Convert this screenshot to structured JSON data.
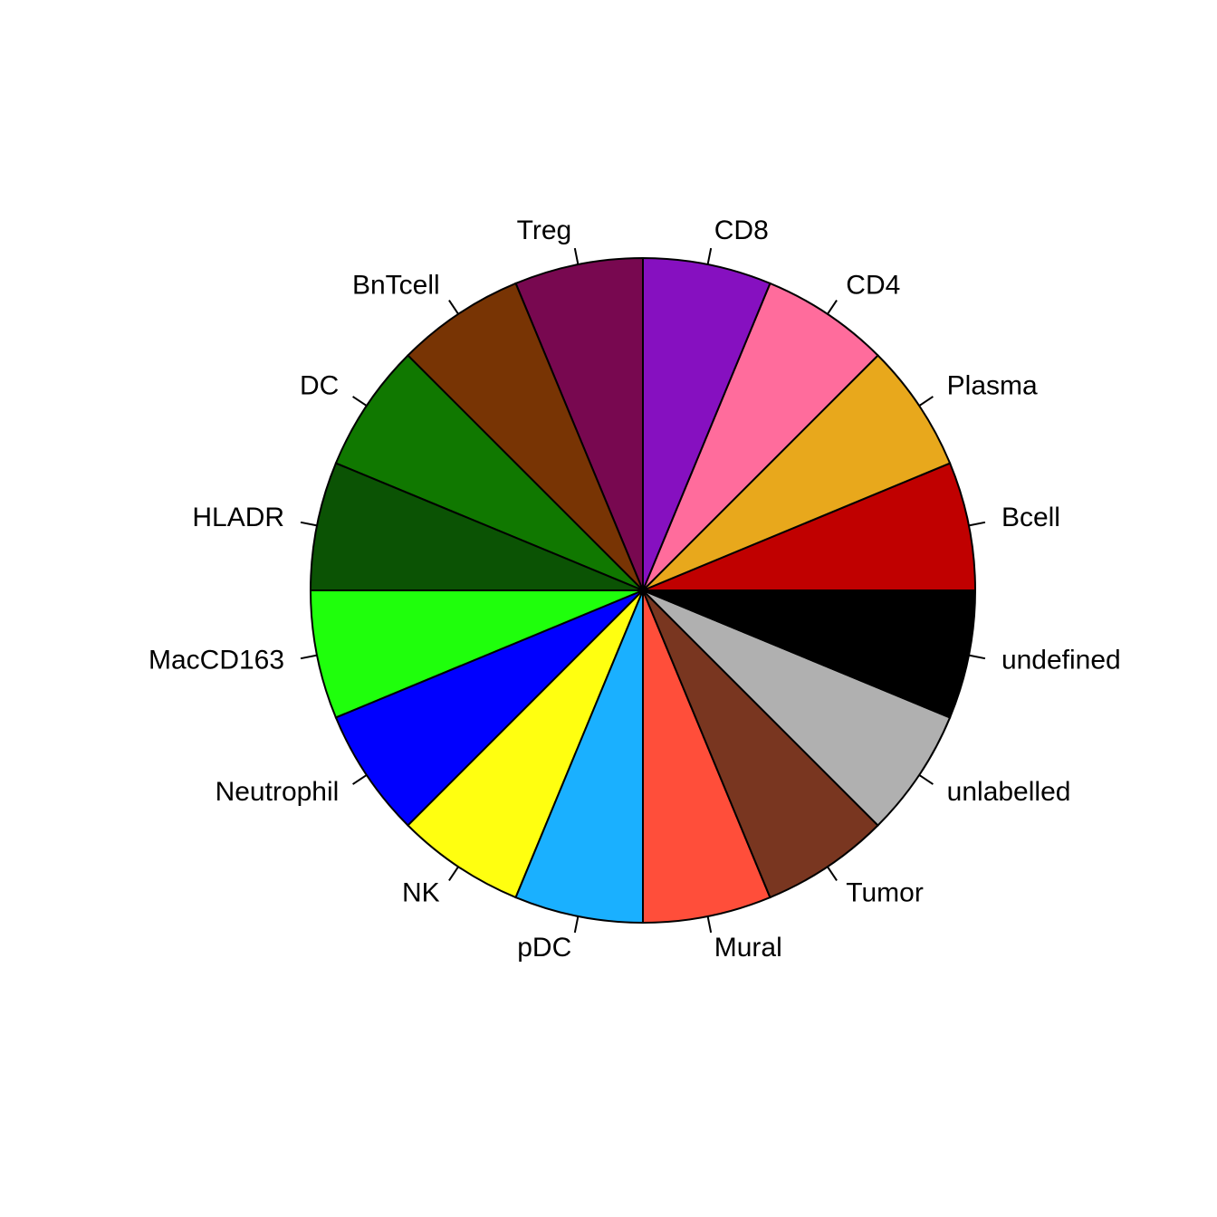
{
  "chart_data": {
    "type": "pie",
    "title": "",
    "direction": "counterclockwise",
    "start": "3 o'clock",
    "slices": [
      {
        "label": "Bcell",
        "value": 1,
        "color": "#C00000"
      },
      {
        "label": "Plasma",
        "value": 1,
        "color": "#E8A81C"
      },
      {
        "label": "CD4",
        "value": 1,
        "color": "#FF6C9C"
      },
      {
        "label": "CD8",
        "value": 1,
        "color": "#8610C0"
      },
      {
        "label": "Treg",
        "value": 1,
        "color": "#780850"
      },
      {
        "label": "BnTcell",
        "value": 1,
        "color": "#783404"
      },
      {
        "label": "DC",
        "value": 1,
        "color": "#107800"
      },
      {
        "label": "HLADR",
        "value": 1,
        "color": "#0B5304"
      },
      {
        "label": "MacCD163",
        "value": 1,
        "color": "#1FFF0C"
      },
      {
        "label": "Neutrophil",
        "value": 1,
        "color": "#0000FF"
      },
      {
        "label": "NK",
        "value": 1,
        "color": "#FFFF10"
      },
      {
        "label": "pDC",
        "value": 1,
        "color": "#1AB0FF"
      },
      {
        "label": "Mural",
        "value": 1,
        "color": "#FF4E3A"
      },
      {
        "label": "Tumor",
        "value": 1,
        "color": "#793620"
      },
      {
        "label": "unlabelled",
        "value": 1,
        "color": "#B0B0B0"
      },
      {
        "label": "undefined",
        "value": 1,
        "color": "#000000"
      }
    ]
  }
}
